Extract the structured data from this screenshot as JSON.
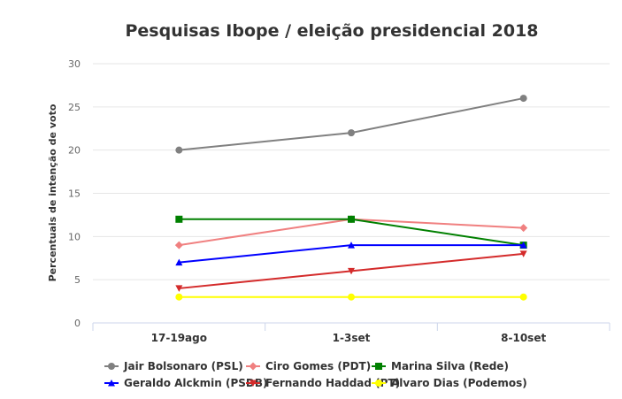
{
  "chart_data": {
    "type": "line",
    "title": "Pesquisas Ibope / eleição presidencial 2018",
    "ylabel": "Percentuais de intenção de voto",
    "xlabel": "",
    "categories": [
      "17-19ago",
      "1-3set",
      "8-10set"
    ],
    "ylim": [
      0,
      30
    ],
    "yticks": [
      0,
      5,
      10,
      15,
      20,
      25,
      30
    ],
    "grid": true,
    "legend_position": "bottom",
    "series": [
      {
        "name": "Jair Bolsonaro (PSL)",
        "values": [
          20,
          22,
          26
        ],
        "color": "#808080",
        "marker": "circle"
      },
      {
        "name": "Ciro Gomes (PDT)",
        "values": [
          9,
          12,
          11
        ],
        "color": "#f08080",
        "marker": "diamond"
      },
      {
        "name": "Marina Silva (Rede)",
        "values": [
          12,
          12,
          9
        ],
        "color": "#008000",
        "marker": "square"
      },
      {
        "name": "Geraldo Alckmin (PSDB)",
        "values": [
          7,
          9,
          9
        ],
        "color": "#0000ff",
        "marker": "triangle"
      },
      {
        "name": "Fernando Haddad (PT)",
        "values": [
          4,
          6,
          8
        ],
        "color": "#d42b2b",
        "marker": "triangle-down"
      },
      {
        "name": "Alvaro Dias (Podemos)",
        "values": [
          3,
          3,
          3
        ],
        "color": "#ffff00",
        "marker": "circle"
      }
    ]
  }
}
